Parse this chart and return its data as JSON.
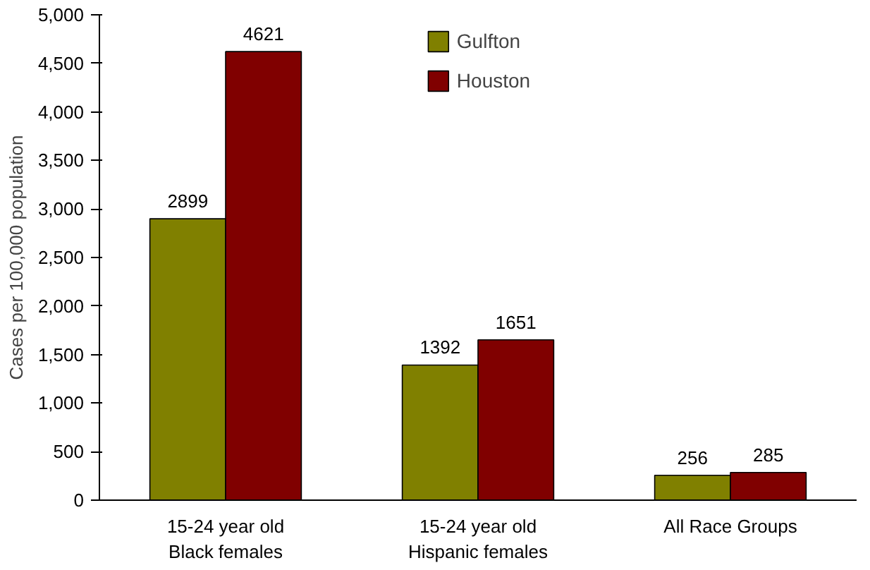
{
  "chart_data": {
    "type": "bar",
    "ylabel": "Cases per 100,000 population",
    "categories": [
      "15-24 year old\nBlack females",
      "15-24 year old\nHispanic females",
      "All Race Groups"
    ],
    "series": [
      {
        "name": "Gulfton",
        "color": "#808000",
        "values": [
          2899,
          1392,
          256
        ]
      },
      {
        "name": "Houston",
        "color": "#800000",
        "values": [
          4621,
          1651,
          285
        ]
      }
    ],
    "ylim": [
      0,
      5000
    ],
    "yticks": [
      0,
      {
        "value": 500,
        "label": "500"
      },
      {
        "value": 1000,
        "label": "1,000"
      },
      {
        "value": 1500,
        "label": "1,500"
      },
      {
        "value": 2000,
        "label": "2,000"
      },
      {
        "value": 2500,
        "label": "2,500"
      },
      {
        "value": 3000,
        "label": "3,000"
      },
      {
        "value": 3500,
        "label": "3,500"
      },
      {
        "value": 4000,
        "label": "4,000"
      },
      {
        "value": 4500,
        "label": "4,500"
      },
      {
        "value": 5000,
        "label": "5,000"
      }
    ],
    "data_labels": true,
    "grid": false,
    "legend": "top"
  }
}
